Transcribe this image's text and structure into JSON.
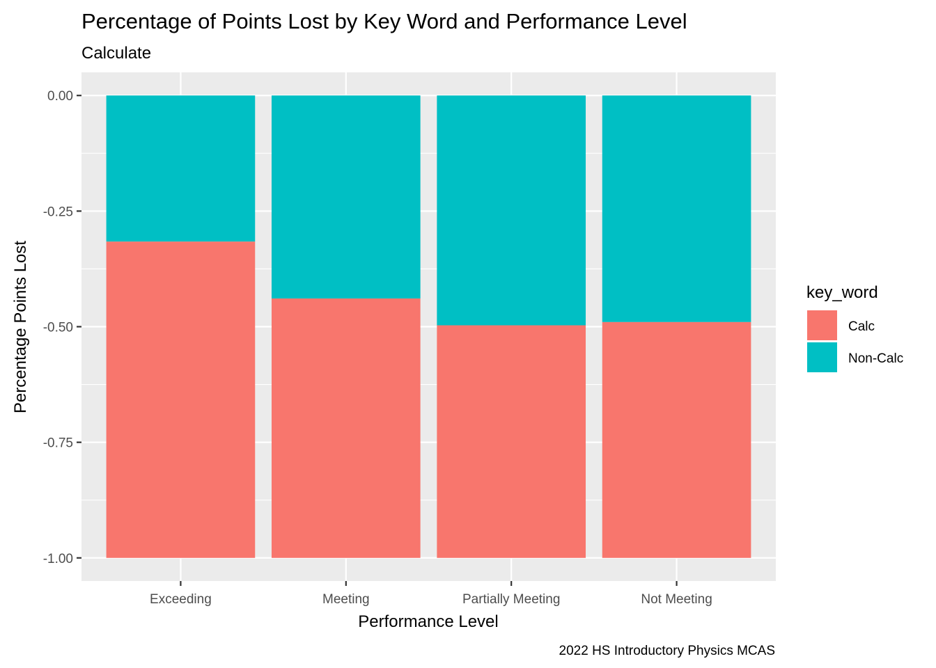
{
  "chart_data": {
    "type": "bar",
    "stacked": true,
    "title": "Percentage of Points Lost by Key Word and Performance Level",
    "subtitle": "Calculate",
    "xlabel": "Performance Level",
    "ylabel": "Percentage Points Lost",
    "caption": "2022 HS Introductory Physics MCAS",
    "categories": [
      "Exceeding",
      "Meeting",
      "Partially Meeting",
      "Not Meeting"
    ],
    "series": [
      {
        "name": "Calc",
        "color": "#F8766D",
        "values": [
          -0.684,
          -0.561,
          -0.503,
          -0.51
        ]
      },
      {
        "name": "Non-Calc",
        "color": "#00BFC4",
        "values": [
          -0.316,
          -0.439,
          -0.497,
          -0.49
        ]
      }
    ],
    "ylim": [
      -1.05,
      0.05
    ],
    "yticks": [
      0.0,
      -0.25,
      -0.5,
      -0.75,
      -1.0
    ],
    "ytick_labels": [
      "0.00",
      "-0.25",
      "-0.50",
      "-0.75",
      "-1.00"
    ],
    "legend": {
      "title": "key_word",
      "position": "right"
    },
    "grid": true,
    "panel_background": "#EBEBEB"
  }
}
